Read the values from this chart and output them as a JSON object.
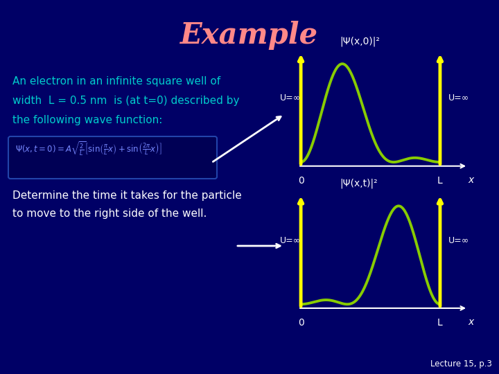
{
  "bg_color": "#000066",
  "title": "Example",
  "title_color": "#ff8888",
  "title_fontsize": 30,
  "text_color": "#00cccc",
  "white": "#ffffff",
  "yellow": "#ffff00",
  "green_curve": "#88cc00",
  "formula_color": "#7788ff",
  "bottom_text_color": "#ffffff",
  "text1_lines": [
    "An electron in an infinite square well of",
    "width  L = 0.5 nm  is (at t=0) described by",
    "the following wave function:"
  ],
  "text2_lines": [
    "Determine the time it takes for the particle",
    "to move to the right side of the well."
  ],
  "bottom_label": "Lecture 15, p.3",
  "ylabel1": "|Ψ(x,0)|²",
  "ylabel2": "|Ψ(x,t)|²",
  "u_inf": "U=∞"
}
